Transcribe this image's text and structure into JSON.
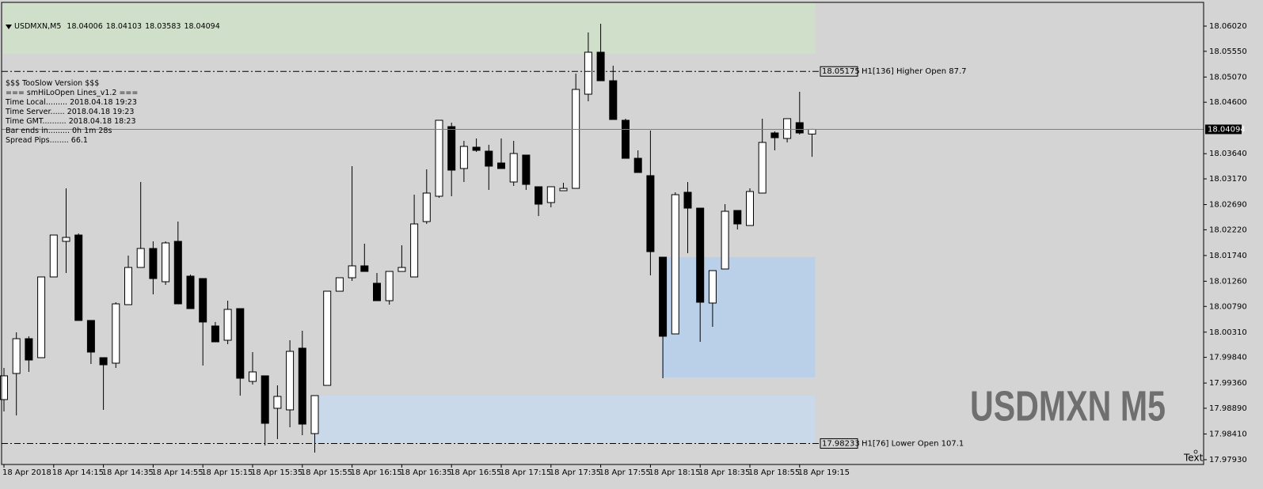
{
  "chart_data": {
    "type": "candlestick",
    "symbol": "USDMXN,M5",
    "watermark": "USDMXN M5",
    "corner_text": "Text",
    "info_lines": [
      "$$$ TooSlow Version $$$",
      "=== smHiLoOpen Lines_v1.2 ===",
      "Time Local......... 2018.04.18 19:23",
      "Time Server...... 2018.04.18 19:23",
      "Time GMT.......... 2018.04.18 18:23",
      "Bar ends in......... 0h 1m 28s",
      "Spread Pips........ 66.1"
    ],
    "categories": [
      "18 Apr 2018",
      null,
      null,
      null,
      "18 Apr 14:15",
      null,
      null,
      null,
      "18 Apr 14:35",
      null,
      null,
      null,
      "18 Apr 14:55",
      null,
      null,
      null,
      "18 Apr 15:15",
      null,
      null,
      null,
      "18 Apr 15:35",
      null,
      null,
      null,
      "18 Apr 15:55",
      null,
      null,
      null,
      "18 Apr 16:15",
      null,
      null,
      null,
      "18 Apr 16:35",
      null,
      null,
      null,
      "18 Apr 16:55",
      null,
      null,
      null,
      "18 Apr 17:15",
      null,
      null,
      null,
      "18 Apr 17:35",
      null,
      null,
      null,
      "18 Apr 17:55",
      null,
      null,
      null,
      "18 Apr 18:15",
      null,
      null,
      null,
      "18 Apr 18:35",
      null,
      null,
      null,
      "18 Apr 18:55",
      null,
      null,
      null,
      "18 Apr 19:15",
      null
    ],
    "open": [
      17.99052,
      17.99539,
      18.00188,
      17.99834,
      18.0134,
      18.02004,
      18.02122,
      18.00528,
      17.99834,
      17.99731,
      18.00823,
      18.01517,
      18.01871,
      18.01251,
      18.02004,
      18.01355,
      18.0131,
      18.00425,
      18.00159,
      18.00749,
      17.99391,
      17.99495,
      17.98889,
      17.9886,
      18.00011,
      17.98417,
      17.99317,
      18.01074,
      18.01325,
      18.01547,
      18.01222,
      18.00897,
      18.01443,
      18.0134,
      18.02373,
      18.02846,
      18.04145,
      18.03363,
      18.03761,
      18.03687,
      18.03466,
      18.03112,
      18.03614,
      18.03023,
      18.02728,
      18.02949,
      18.02993,
      18.0475,
      18.05533,
      18.05001,
      18.04263,
      18.03554,
      18.0323,
      18.01709,
      18.00277,
      18.0292,
      18.02624,
      18.00853,
      18.01488,
      18.0258,
      18.023,
      18.02905,
      18.04027,
      18.03924,
      18.04219,
      18.04006
    ],
    "high": [
      17.99642,
      18.00307,
      18.00233,
      18.0134,
      18.02122,
      18.02993,
      18.02152,
      18.00528,
      17.99834,
      18.00868,
      18.01739,
      18.03112,
      18.02004,
      18.02004,
      18.02373,
      18.01384,
      18.0131,
      18.00499,
      18.00897,
      18.00749,
      17.99938,
      17.99495,
      17.99317,
      18.00159,
      18.00336,
      17.99126,
      18.01074,
      18.01325,
      18.03407,
      18.0196,
      18.01414,
      18.01443,
      18.01931,
      18.02875,
      18.03348,
      18.04263,
      18.04219,
      18.03879,
      18.03924,
      18.03805,
      18.03924,
      18.03879,
      18.03614,
      18.03023,
      18.03023,
      18.03097,
      18.05134,
      18.05902,
      18.06064,
      18.05282,
      18.04293,
      18.03702,
      18.04071,
      18.01709,
      18.0292,
      18.03112,
      18.02624,
      18.01458,
      18.02698,
      18.0258,
      18.02993,
      18.04293,
      18.04056,
      18.04293,
      18.04795,
      18.04103
    ],
    "low": [
      17.9883,
      17.98756,
      17.99568,
      17.99834,
      18.0134,
      18.01414,
      18.00528,
      17.99716,
      17.9886,
      17.99642,
      18.00823,
      18.01517,
      18.01015,
      18.01192,
      18.00838,
      18.00749,
      17.99687,
      18.00129,
      18.00085,
      17.99126,
      17.99332,
      17.98195,
      17.98314,
      17.98535,
      17.98387,
      17.98063,
      17.99317,
      18.01074,
      18.01266,
      18.01443,
      18.00897,
      18.00823,
      18.01443,
      18.0134,
      18.02329,
      18.02816,
      18.02846,
      18.03112,
      18.03673,
      18.02964,
      18.03363,
      18.03038,
      18.02964,
      18.02477,
      18.02639,
      18.02949,
      18.02993,
      18.04617,
      18.05001,
      18.04278,
      18.03554,
      18.03289,
      18.0137,
      17.9945,
      18.00277,
      18.01783,
      18.00129,
      18.0041,
      18.01488,
      18.02226,
      18.023,
      18.02905,
      18.03702,
      18.0385,
      18.03997,
      18.03583
    ],
    "close": [
      17.99495,
      18.00188,
      17.9979,
      18.0134,
      18.02122,
      18.02078,
      18.00528,
      17.99938,
      17.99701,
      18.00838,
      18.01517,
      18.01871,
      18.0131,
      18.01975,
      18.00838,
      18.00749,
      18.00499,
      18.00129,
      18.00735,
      17.9945,
      17.99568,
      17.98609,
      17.99111,
      17.99952,
      17.98594,
      17.99126,
      18.01074,
      18.01325,
      18.01547,
      18.01443,
      18.00897,
      18.01443,
      18.01517,
      18.02329,
      18.02905,
      18.04263,
      18.03333,
      18.03776,
      18.03702,
      18.03407,
      18.03363,
      18.03643,
      18.03067,
      18.02698,
      18.03023,
      18.02993,
      18.04839,
      18.05533,
      18.05001,
      18.04278,
      18.03554,
      18.03289,
      18.01812,
      18.00233,
      18.02875,
      18.02624,
      18.00868,
      18.01458,
      18.02565,
      18.02329,
      18.02934,
      18.0385,
      18.03938,
      18.04293,
      18.04027,
      18.04094
    ],
    "up_color": "#ffffff",
    "down_color": "#000000",
    "ylim": [
      17.97841,
      18.06463
    ],
    "yticks": [
      {
        "value": 18.0602,
        "label": "18.06020"
      },
      {
        "value": 18.0555,
        "label": "18.05550"
      },
      {
        "value": 18.0507,
        "label": "18.05070"
      },
      {
        "value": 18.046,
        "label": "18.04600"
      },
      {
        "value": 18.0364,
        "label": "18.03640"
      },
      {
        "value": 18.0317,
        "label": "18.03170"
      },
      {
        "value": 18.0269,
        "label": "18.02690"
      },
      {
        "value": 18.0222,
        "label": "18.02220"
      },
      {
        "value": 18.0174,
        "label": "18.01740"
      },
      {
        "value": 18.0126,
        "label": "18.01260"
      },
      {
        "value": 18.0079,
        "label": "18.00790"
      },
      {
        "value": 18.0031,
        "label": "18.00310"
      },
      {
        "value": 17.9984,
        "label": "17.99840"
      },
      {
        "value": 17.9936,
        "label": "17.99360"
      },
      {
        "value": 17.9889,
        "label": "17.98890"
      },
      {
        "value": 17.9841,
        "label": "17.98410"
      },
      {
        "value": 17.9793,
        "label": "17.97930"
      }
    ],
    "levels": [
      {
        "value": 18.05175,
        "label": "H1[136] Higher Open 87.7"
      },
      {
        "value": 17.98233,
        "label": "H1[76] Lower Open 107.1"
      }
    ],
    "zones": [
      {
        "start": 0,
        "top": 18.06463,
        "bottom": 18.05503,
        "color": "#d0dfca"
      },
      {
        "start": 25,
        "top": 17.99126,
        "bottom": 17.98233,
        "color": "#c9d9ea"
      },
      {
        "start": 53,
        "top": 18.01709,
        "bottom": 17.99466,
        "color": "#bad0e9"
      }
    ]
  }
}
